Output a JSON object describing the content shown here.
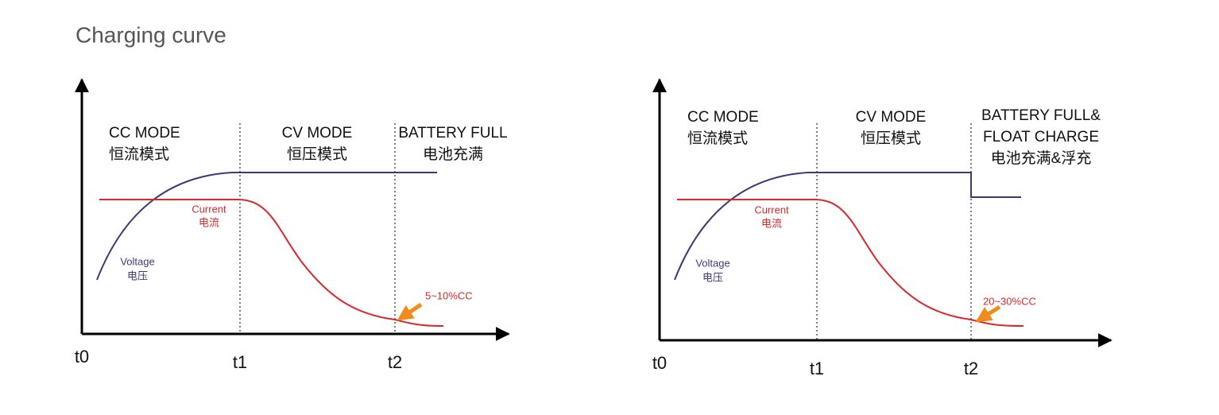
{
  "title": "Charging curve",
  "diagrams": [
    {
      "modes": [
        {
          "lines": [
            "CC MODE",
            "恒流模式"
          ]
        },
        {
          "lines": [
            "CV MODE",
            "恒压模式"
          ]
        },
        {
          "lines": [
            "BATTERY FULL",
            "电池充满"
          ]
        }
      ],
      "current_label": [
        "Current",
        "电流"
      ],
      "voltage_label": [
        "Voltage",
        "电压"
      ],
      "annotation": "5~10%CC",
      "time_labels": [
        "t0",
        "t1",
        "t2"
      ]
    },
    {
      "modes": [
        {
          "lines": [
            "CC MODE",
            "恒流模式"
          ]
        },
        {
          "lines": [
            "CV MODE",
            "恒压模式"
          ]
        },
        {
          "lines": [
            "BATTERY FULL&",
            "FLOAT CHARGE",
            "电池充满&浮充"
          ]
        }
      ],
      "current_label": [
        "Current",
        "电流"
      ],
      "voltage_label": [
        "Voltage",
        "电压"
      ],
      "annotation": "20~30%CC",
      "time_labels": [
        "t0",
        "t1",
        "t2"
      ]
    }
  ]
}
